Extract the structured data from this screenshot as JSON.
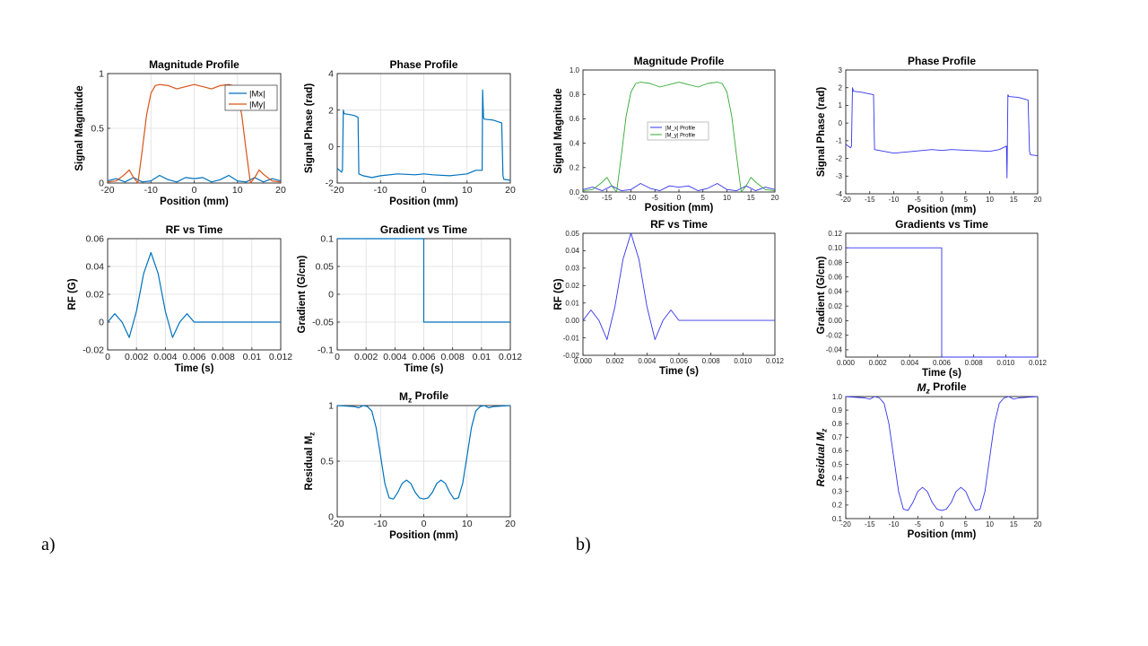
{
  "figure": {
    "panel_a_label": "a)",
    "panel_b_label": "b)"
  },
  "colors": {
    "a_blue": "#0072BD",
    "a_orange": "#D95319",
    "b_blue": "#3333EE",
    "b_green": "#33AA33",
    "grid": "#DDDDDD",
    "axis": "#222222"
  },
  "chart_data": [
    {
      "id": "a-magnitude",
      "panel": "a",
      "type": "line",
      "title": "Magnitude Profile",
      "xlabel": "Position (mm)",
      "ylabel": "Signal Magnitude",
      "xlim": [
        -20,
        20
      ],
      "ylim": [
        0,
        1
      ],
      "xticks": [
        -20,
        -10,
        0,
        10,
        20
      ],
      "xtick_labels": [
        "-20",
        "-10",
        "0",
        "10",
        "20"
      ],
      "yticks": [
        0,
        0.5,
        1
      ],
      "ytick_labels": [
        "0",
        "0.5",
        "1"
      ],
      "grid": true,
      "legend": "top-right",
      "series": [
        {
          "name": "|Mx|",
          "color_key": "a_blue",
          "x": [
            -20,
            -18,
            -16,
            -14,
            -12,
            -10,
            -8,
            -6,
            -4,
            -2,
            0,
            2,
            4,
            6,
            8,
            10,
            12,
            14,
            16,
            18,
            20
          ],
          "y": [
            0.02,
            0.04,
            0.01,
            0.05,
            0.01,
            0.02,
            0.07,
            0.03,
            0.01,
            0.05,
            0.04,
            0.05,
            0.01,
            0.03,
            0.07,
            0.02,
            0.01,
            0.05,
            0.01,
            0.04,
            0.02
          ]
        },
        {
          "name": "|My|",
          "color_key": "a_orange",
          "x": [
            -20,
            -18,
            -16,
            -15,
            -14,
            -13,
            -12,
            -11,
            -10,
            -9,
            -8,
            -6,
            -4,
            -2,
            0,
            2,
            4,
            6,
            8,
            9,
            10,
            11,
            12,
            13,
            14,
            15,
            16,
            18,
            20
          ],
          "y": [
            0.01,
            0.02,
            0.08,
            0.12,
            0.05,
            0.0,
            0.3,
            0.62,
            0.82,
            0.89,
            0.9,
            0.89,
            0.86,
            0.88,
            0.9,
            0.88,
            0.86,
            0.89,
            0.9,
            0.89,
            0.82,
            0.62,
            0.3,
            0.0,
            0.05,
            0.12,
            0.08,
            0.02,
            0.01
          ]
        }
      ]
    },
    {
      "id": "a-phase",
      "panel": "a",
      "type": "line",
      "title": "Phase Profile",
      "xlabel": "Position (mm)",
      "ylabel": "Signal Phase (rad)",
      "xlim": [
        -20,
        20
      ],
      "ylim": [
        -2,
        4
      ],
      "xticks": [
        -20,
        -10,
        0,
        10,
        20
      ],
      "xtick_labels": [
        "-20",
        "-10",
        "0",
        "10",
        "20"
      ],
      "yticks": [
        -2,
        0,
        2,
        4
      ],
      "ytick_labels": [
        "-2",
        "0",
        "2",
        "4"
      ],
      "grid": true,
      "series": [
        {
          "name": "phase",
          "color_key": "a_blue",
          "x": [
            -20,
            -19,
            -18.8,
            -18.6,
            -18.4,
            -17,
            -16,
            -15.2,
            -15,
            -14,
            -12,
            -10,
            -6,
            -2,
            0,
            2,
            6,
            10,
            12,
            13.5,
            13.6,
            13.8,
            14,
            16,
            18,
            18.3,
            18.5,
            20
          ],
          "y": [
            -1.2,
            -1.4,
            -1.3,
            2.0,
            1.8,
            1.75,
            1.7,
            1.6,
            -1.5,
            -1.6,
            -1.7,
            -1.6,
            -1.5,
            -1.55,
            -1.5,
            -1.55,
            -1.6,
            -1.5,
            -1.3,
            -1.3,
            3.1,
            1.6,
            1.5,
            1.45,
            1.3,
            -1.6,
            -1.8,
            -1.85
          ]
        }
      ]
    },
    {
      "id": "a-rf",
      "panel": "a",
      "type": "line",
      "title": "RF vs Time",
      "xlabel": "Time (s)",
      "ylabel": "RF (G)",
      "xlim": [
        0,
        0.012
      ],
      "ylim": [
        -0.02,
        0.06
      ],
      "xticks": [
        0,
        0.002,
        0.004,
        0.006,
        0.008,
        0.01,
        0.012
      ],
      "xtick_labels": [
        "0",
        "0.002",
        "0.004",
        "0.006",
        "0.008",
        "0.01",
        "0.012"
      ],
      "yticks": [
        -0.02,
        0,
        0.02,
        0.04,
        0.06
      ],
      "ytick_labels": [
        "-0.02",
        "0",
        "0.02",
        "0.04",
        "0.06"
      ],
      "grid": true,
      "series": [
        {
          "name": "RF",
          "color_key": "a_blue",
          "x": [
            0,
            0.0005,
            0.001,
            0.0015,
            0.002,
            0.0025,
            0.003,
            0.0035,
            0.004,
            0.0045,
            0.005,
            0.0055,
            0.006,
            0.012
          ],
          "y": [
            0,
            0.006,
            0,
            -0.011,
            0.008,
            0.035,
            0.05,
            0.035,
            0.008,
            -0.011,
            0,
            0.006,
            0,
            0
          ]
        }
      ]
    },
    {
      "id": "a-gradient",
      "panel": "a",
      "type": "line",
      "title": "Gradient vs Time",
      "xlabel": "Time (s)",
      "ylabel": "Gradient (G/cm)",
      "xlim": [
        0,
        0.012
      ],
      "ylim": [
        -0.1,
        0.1
      ],
      "xticks": [
        0,
        0.002,
        0.004,
        0.006,
        0.008,
        0.01,
        0.012
      ],
      "xtick_labels": [
        "0",
        "0.002",
        "0.004",
        "0.006",
        "0.008",
        "0.01",
        "0.012"
      ],
      "yticks": [
        -0.1,
        -0.05,
        0,
        0.05,
        0.1
      ],
      "ytick_labels": [
        "-0.1",
        "-0.05",
        "0",
        "0.05",
        "0.1"
      ],
      "grid": true,
      "series": [
        {
          "name": "gradient",
          "color_key": "a_blue",
          "x": [
            0,
            0.006,
            0.006,
            0.012
          ],
          "y": [
            0.1,
            0.1,
            -0.05,
            -0.05
          ]
        }
      ]
    },
    {
      "id": "a-mz",
      "panel": "a",
      "type": "line",
      "title": "M",
      "title_sub": "z",
      "title_after": " Profile",
      "xlabel": "Position (mm)",
      "ylabel": "Residual M",
      "ylabel_sub": "z",
      "xlim": [
        -20,
        20
      ],
      "ylim": [
        0,
        1
      ],
      "xticks": [
        -20,
        -10,
        0,
        10,
        20
      ],
      "xtick_labels": [
        "-20",
        "-10",
        "0",
        "10",
        "20"
      ],
      "yticks": [
        0,
        0.5,
        1
      ],
      "ytick_labels": [
        "0",
        "0.5",
        "1"
      ],
      "grid": true,
      "series": [
        {
          "name": "Mz",
          "color_key": "a_blue",
          "x": [
            -20,
            -16,
            -15,
            -14,
            -13,
            -12,
            -11,
            -10,
            -9,
            -8,
            -7,
            -6,
            -5,
            -4,
            -3,
            -2,
            -1,
            0,
            1,
            2,
            3,
            4,
            5,
            6,
            7,
            8,
            9,
            10,
            11,
            12,
            13,
            14,
            15,
            16,
            20
          ],
          "y": [
            1,
            0.99,
            0.98,
            1,
            0.99,
            0.95,
            0.8,
            0.55,
            0.3,
            0.17,
            0.16,
            0.22,
            0.3,
            0.33,
            0.3,
            0.22,
            0.17,
            0.16,
            0.17,
            0.22,
            0.3,
            0.33,
            0.3,
            0.22,
            0.16,
            0.17,
            0.3,
            0.55,
            0.8,
            0.95,
            0.99,
            1,
            0.98,
            0.99,
            1
          ]
        }
      ]
    },
    {
      "id": "b-magnitude",
      "panel": "b",
      "type": "line",
      "title": "Magnitude Profile",
      "xlabel": "Position (mm)",
      "ylabel": "Signal Magnitude",
      "xlim": [
        -20,
        20
      ],
      "ylim": [
        0,
        1
      ],
      "xticks": [
        -20,
        -15,
        -10,
        -5,
        0,
        5,
        10,
        15,
        20
      ],
      "xtick_labels": [
        "-20",
        "-15",
        "-10",
        "-5",
        "0",
        "5",
        "10",
        "15",
        "20"
      ],
      "yticks": [
        0,
        0.2,
        0.4,
        0.6,
        0.8,
        1.0
      ],
      "ytick_labels": [
        "0.0",
        "0.2",
        "0.4",
        "0.6",
        "0.8",
        "1.0"
      ],
      "grid": false,
      "legend": "center-right",
      "series": [
        {
          "name": "|M_x| Profile",
          "color_key": "b_blue",
          "x": [
            -20,
            -18,
            -16,
            -14,
            -12,
            -10,
            -8,
            -6,
            -4,
            -2,
            0,
            2,
            4,
            6,
            8,
            10,
            12,
            14,
            16,
            18,
            20
          ],
          "y": [
            0.02,
            0.04,
            0.01,
            0.05,
            0.01,
            0.02,
            0.07,
            0.03,
            0.01,
            0.05,
            0.04,
            0.05,
            0.01,
            0.03,
            0.07,
            0.02,
            0.01,
            0.05,
            0.01,
            0.04,
            0.02
          ]
        },
        {
          "name": "|M_y| Profile",
          "color_key": "b_green",
          "x": [
            -20,
            -18,
            -16,
            -15,
            -14,
            -13,
            -12,
            -11,
            -10,
            -9,
            -8,
            -6,
            -4,
            -2,
            0,
            2,
            4,
            6,
            8,
            9,
            10,
            11,
            12,
            13,
            14,
            15,
            16,
            18,
            20
          ],
          "y": [
            0.01,
            0.02,
            0.08,
            0.12,
            0.05,
            0.0,
            0.3,
            0.62,
            0.82,
            0.89,
            0.9,
            0.89,
            0.86,
            0.88,
            0.9,
            0.88,
            0.86,
            0.89,
            0.9,
            0.89,
            0.82,
            0.62,
            0.3,
            0.0,
            0.05,
            0.12,
            0.08,
            0.02,
            0.01
          ]
        }
      ]
    },
    {
      "id": "b-phase",
      "panel": "b",
      "type": "line",
      "title": "Phase Profile",
      "xlabel": "Position (mm)",
      "ylabel": "Signal Phase (rad)",
      "xlim": [
        -20,
        20
      ],
      "ylim": [
        -4,
        3
      ],
      "xticks": [
        -20,
        -15,
        -10,
        -5,
        0,
        5,
        10,
        15,
        20
      ],
      "xtick_labels": [
        "-20",
        "-15",
        "-10",
        "-5",
        "0",
        "5",
        "10",
        "15",
        "20"
      ],
      "yticks": [
        -4,
        -3,
        -2,
        -1,
        0,
        1,
        2,
        3
      ],
      "ytick_labels": [
        "-4",
        "-3",
        "-2",
        "-1",
        "0",
        "1",
        "2",
        "3"
      ],
      "grid": false,
      "series": [
        {
          "name": "phase",
          "color_key": "b_blue",
          "x": [
            -20,
            -19,
            -18.8,
            -18.6,
            -18.4,
            -17,
            -16,
            -14.2,
            -14,
            -12,
            -10,
            -6,
            -2,
            0,
            2,
            6,
            10,
            12,
            13.5,
            13.6,
            13.8,
            14,
            16,
            18,
            18.3,
            18.5,
            20
          ],
          "y": [
            -1.2,
            -1.4,
            -1.3,
            2.0,
            1.8,
            1.75,
            1.7,
            1.6,
            -1.5,
            -1.6,
            -1.7,
            -1.6,
            -1.5,
            -1.55,
            -1.5,
            -1.55,
            -1.6,
            -1.5,
            -1.3,
            -3.1,
            1.6,
            1.5,
            1.45,
            1.3,
            -1.6,
            -1.8,
            -1.85
          ]
        }
      ]
    },
    {
      "id": "b-rf",
      "panel": "b",
      "type": "line",
      "title": "RF vs Time",
      "xlabel": "Time (s)",
      "ylabel": "RF (G)",
      "xlim": [
        0,
        0.012
      ],
      "ylim": [
        -0.02,
        0.05
      ],
      "xticks": [
        0,
        0.002,
        0.004,
        0.006,
        0.008,
        0.01,
        0.012
      ],
      "xtick_labels": [
        "0.000",
        "0.002",
        "0.004",
        "0.006",
        "0.008",
        "0.010",
        "0.012"
      ],
      "yticks": [
        -0.02,
        -0.01,
        0,
        0.01,
        0.02,
        0.03,
        0.04,
        0.05
      ],
      "ytick_labels": [
        "-0.02",
        "-0.01",
        "0.00",
        "0.01",
        "0.02",
        "0.03",
        "0.04",
        "0.05"
      ],
      "grid": false,
      "series": [
        {
          "name": "RF",
          "color_key": "b_blue",
          "x": [
            0,
            0.0005,
            0.001,
            0.0015,
            0.002,
            0.0025,
            0.003,
            0.0035,
            0.004,
            0.0045,
            0.005,
            0.0055,
            0.006,
            0.012
          ],
          "y": [
            0,
            0.006,
            0,
            -0.011,
            0.008,
            0.035,
            0.05,
            0.035,
            0.008,
            -0.011,
            0,
            0.006,
            0,
            0
          ]
        }
      ]
    },
    {
      "id": "b-gradient",
      "panel": "b",
      "type": "line",
      "title": "Gradients vs Time",
      "xlabel": "Time (s)",
      "ylabel": "Gradient (G/cm)",
      "xlim": [
        0,
        0.012
      ],
      "ylim": [
        -0.05,
        0.12
      ],
      "xticks": [
        0,
        0.002,
        0.004,
        0.006,
        0.008,
        0.01,
        0.012
      ],
      "xtick_labels": [
        "0.000",
        "0.002",
        "0.004",
        "0.006",
        "0.008",
        "0.010",
        "0.012"
      ],
      "yticks": [
        -0.04,
        -0.02,
        0,
        0.02,
        0.04,
        0.06,
        0.08,
        0.1,
        0.12
      ],
      "ytick_labels": [
        "-0.04",
        "-0.02",
        "0.00",
        "0.02",
        "0.04",
        "0.06",
        "0.08",
        "0.10",
        "0.12"
      ],
      "grid": false,
      "series": [
        {
          "name": "gradient",
          "color_key": "b_blue",
          "x": [
            0,
            0.006,
            0.006,
            0.012
          ],
          "y": [
            0.1,
            0.1,
            -0.05,
            -0.05
          ]
        }
      ]
    },
    {
      "id": "b-mz",
      "panel": "b",
      "type": "line",
      "title": "M",
      "title_sub": "z",
      "title_after": " Profile",
      "title_italic": true,
      "xlabel": "Position (mm)",
      "ylabel": "Residual M",
      "ylabel_sub": "z",
      "ylabel_italic": true,
      "xlim": [
        -20,
        20
      ],
      "ylim": [
        0.1,
        1.0
      ],
      "xticks": [
        -20,
        -15,
        -10,
        -5,
        0,
        5,
        10,
        15,
        20
      ],
      "xtick_labels": [
        "-20",
        "-15",
        "-10",
        "-5",
        "0",
        "5",
        "10",
        "15",
        "20"
      ],
      "yticks": [
        0.1,
        0.2,
        0.3,
        0.4,
        0.5,
        0.6,
        0.7,
        0.8,
        0.9,
        1.0
      ],
      "ytick_labels": [
        "0.1",
        "0.2",
        "0.3",
        "0.4",
        "0.5",
        "0.6",
        "0.7",
        "0.8",
        "0.9",
        "1.0"
      ],
      "grid": false,
      "series": [
        {
          "name": "Mz",
          "color_key": "b_blue",
          "x": [
            -20,
            -16,
            -15,
            -14,
            -13,
            -12,
            -11,
            -10,
            -9,
            -8,
            -7,
            -6,
            -5,
            -4,
            -3,
            -2,
            -1,
            0,
            1,
            2,
            3,
            4,
            5,
            6,
            7,
            8,
            9,
            10,
            11,
            12,
            13,
            14,
            15,
            16,
            20
          ],
          "y": [
            1,
            0.99,
            0.98,
            1,
            0.99,
            0.95,
            0.8,
            0.55,
            0.3,
            0.17,
            0.16,
            0.22,
            0.3,
            0.33,
            0.3,
            0.22,
            0.17,
            0.16,
            0.17,
            0.22,
            0.3,
            0.33,
            0.3,
            0.22,
            0.16,
            0.17,
            0.3,
            0.55,
            0.8,
            0.95,
            0.99,
            1,
            0.98,
            0.99,
            1
          ]
        }
      ]
    }
  ]
}
